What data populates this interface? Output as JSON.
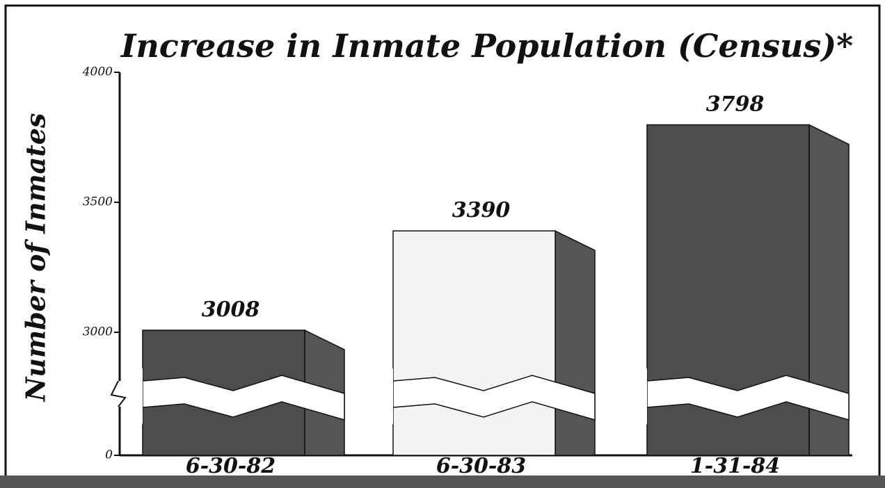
{
  "chart_data": {
    "type": "bar",
    "title": "Increase in Inmate Population (Census)*",
    "y_label": "Number of Inmates",
    "categories": [
      "6-30-82",
      "6-30-83",
      "1-31-84"
    ],
    "values": [
      3008,
      3390,
      3798
    ],
    "colors": [
      "#4d4d4d",
      "#f3f3f3",
      "#4d4d4d"
    ],
    "side_color": "#555555",
    "ylim": [
      0,
      4000
    ],
    "yticks": [
      0,
      3000,
      3500,
      4000
    ],
    "grid": false
  }
}
